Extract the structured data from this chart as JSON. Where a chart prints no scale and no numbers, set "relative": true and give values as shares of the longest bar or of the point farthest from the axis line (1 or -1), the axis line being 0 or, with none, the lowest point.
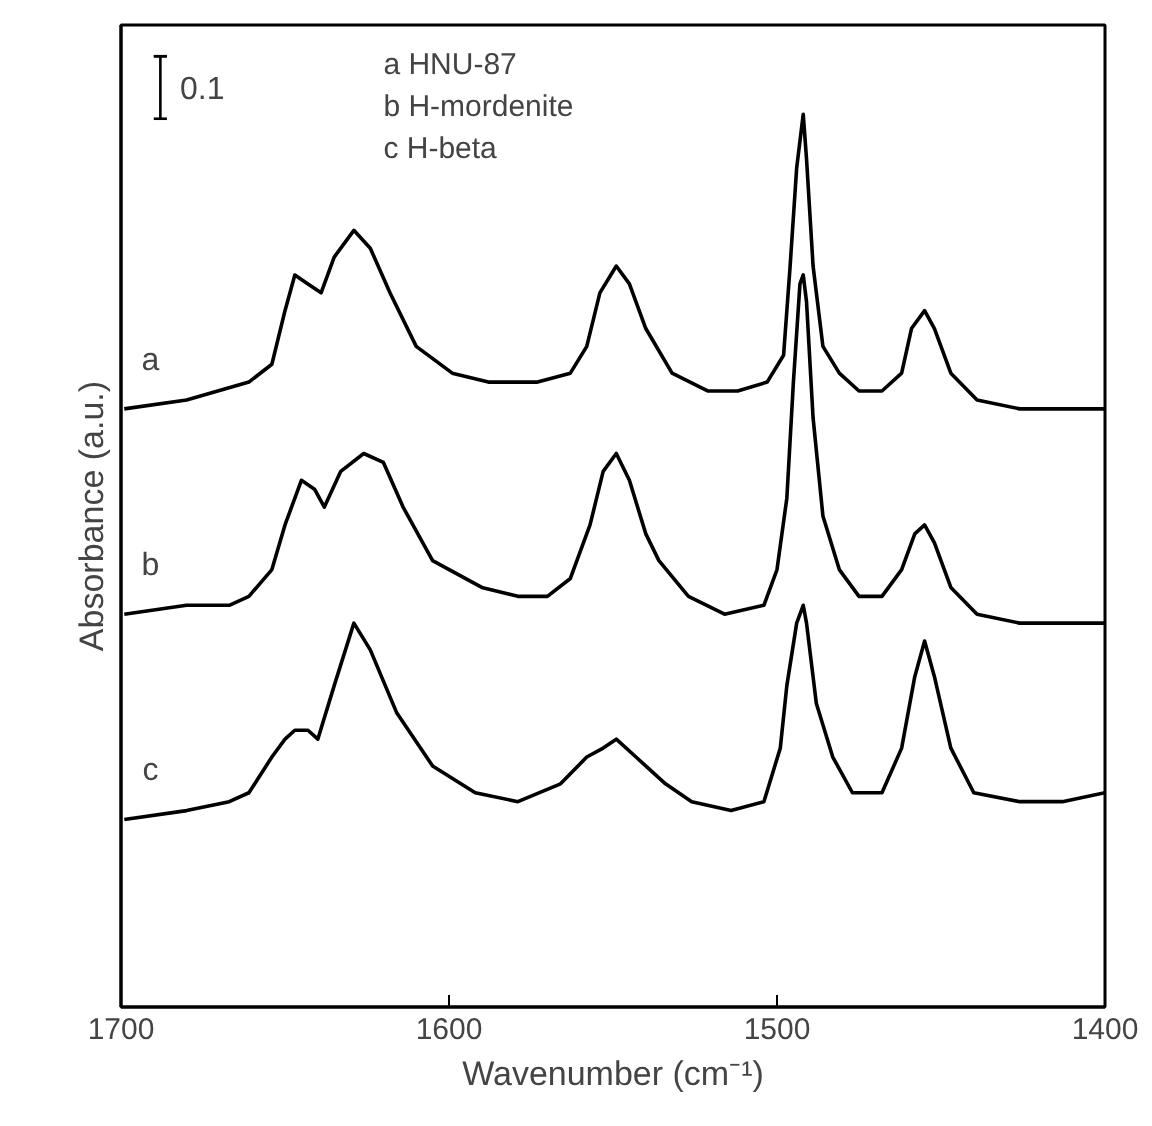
{
  "chart_data": {
    "type": "line",
    "relative": true,
    "xlabel": "Wavenumber (cm⁻¹)",
    "ylabel": "Absorbance (a.u.)",
    "xlim": [
      1700,
      1400
    ],
    "xticks": [
      1700,
      1600,
      1500,
      1400
    ],
    "grid": false,
    "legend": false,
    "marker": "none",
    "line_style": "solid",
    "annotations": [
      "0.1",
      "a  HNU-87",
      "b  H-mordenite",
      "c  H-beta"
    ],
    "series": [
      {
        "name": "a",
        "color": "#000000",
        "x": [
          1699,
          1680,
          1661,
          1654,
          1650,
          1647,
          1643,
          1639,
          1635,
          1629,
          1624,
          1618,
          1610,
          1599,
          1588,
          1573,
          1563,
          1558,
          1554,
          1549,
          1545,
          1540,
          1532,
          1521,
          1512,
          1503,
          1498,
          1496,
          1494,
          1492,
          1491,
          1489,
          1486,
          1481,
          1475,
          1468,
          1462,
          1459,
          1455,
          1452,
          1447,
          1439,
          1426,
          1413,
          1400
        ],
        "values": [
          0.67,
          0.68,
          0.7,
          0.72,
          0.78,
          0.82,
          0.81,
          0.8,
          0.84,
          0.87,
          0.85,
          0.8,
          0.74,
          0.71,
          0.7,
          0.7,
          0.71,
          0.74,
          0.8,
          0.83,
          0.81,
          0.76,
          0.71,
          0.69,
          0.69,
          0.7,
          0.73,
          0.83,
          0.94,
          1.0,
          0.95,
          0.83,
          0.74,
          0.71,
          0.69,
          0.69,
          0.71,
          0.76,
          0.78,
          0.76,
          0.71,
          0.68,
          0.67,
          0.67,
          0.67
        ]
      },
      {
        "name": "b",
        "color": "#000000",
        "x": [
          1699,
          1680,
          1667,
          1661,
          1654,
          1650,
          1645,
          1641,
          1638,
          1633,
          1626,
          1620,
          1614,
          1605,
          1590,
          1579,
          1570,
          1563,
          1557,
          1553,
          1549,
          1545,
          1540,
          1536,
          1527,
          1516,
          1504,
          1500,
          1497,
          1495,
          1493,
          1492,
          1491,
          1489,
          1486,
          1481,
          1475,
          1468,
          1462,
          1458,
          1455,
          1452,
          1447,
          1439,
          1426,
          1413,
          1400
        ],
        "values": [
          0.44,
          0.45,
          0.45,
          0.46,
          0.49,
          0.54,
          0.59,
          0.58,
          0.56,
          0.6,
          0.62,
          0.61,
          0.56,
          0.5,
          0.47,
          0.46,
          0.46,
          0.48,
          0.54,
          0.6,
          0.62,
          0.59,
          0.53,
          0.5,
          0.46,
          0.44,
          0.45,
          0.49,
          0.57,
          0.7,
          0.81,
          0.82,
          0.79,
          0.66,
          0.55,
          0.49,
          0.46,
          0.46,
          0.49,
          0.53,
          0.54,
          0.52,
          0.47,
          0.44,
          0.43,
          0.43,
          0.43
        ]
      },
      {
        "name": "c",
        "color": "#000000",
        "x": [
          1699,
          1680,
          1667,
          1661,
          1654,
          1650,
          1647,
          1643,
          1640,
          1635,
          1629,
          1624,
          1616,
          1605,
          1592,
          1579,
          1566,
          1558,
          1553,
          1549,
          1543,
          1534,
          1526,
          1514,
          1504,
          1499,
          1497,
          1494,
          1492,
          1491,
          1488,
          1483,
          1477,
          1468,
          1462,
          1458,
          1455,
          1452,
          1447,
          1440,
          1426,
          1413,
          1400
        ],
        "values": [
          0.21,
          0.22,
          0.23,
          0.24,
          0.28,
          0.3,
          0.31,
          0.31,
          0.3,
          0.36,
          0.43,
          0.4,
          0.33,
          0.27,
          0.24,
          0.23,
          0.25,
          0.28,
          0.29,
          0.3,
          0.28,
          0.25,
          0.23,
          0.22,
          0.23,
          0.29,
          0.36,
          0.43,
          0.45,
          0.43,
          0.34,
          0.28,
          0.24,
          0.24,
          0.29,
          0.37,
          0.41,
          0.37,
          0.29,
          0.24,
          0.23,
          0.23,
          0.24
        ]
      }
    ]
  }
}
